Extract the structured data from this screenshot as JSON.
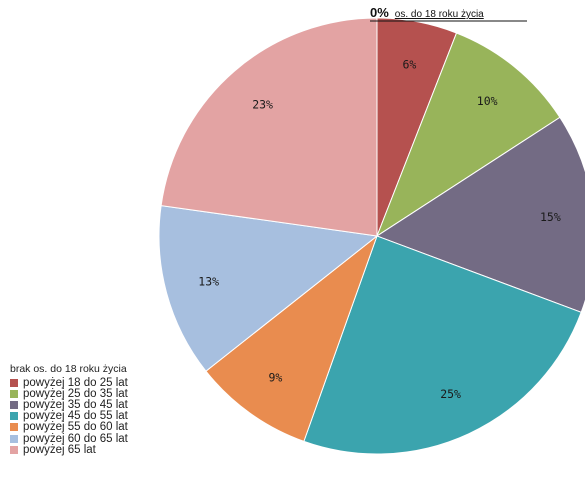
{
  "chart_data": {
    "type": "pie",
    "slices": [
      {
        "label": "brak os. do 18 roku życia",
        "value": 0,
        "value_label": "0%",
        "color": "#3a3a3a"
      },
      {
        "label": "powyżej 18 do 25 lat",
        "value": 6,
        "value_label": "6%",
        "color": "#b5514f"
      },
      {
        "label": "powyżej 25 do 35 lat",
        "value": 10,
        "value_label": "10%",
        "color": "#98b45a"
      },
      {
        "label": "powyżej 35 do 45 lat",
        "value": 15,
        "value_label": "15%",
        "color": "#736b84"
      },
      {
        "label": "powyżej 45 do 55 lat",
        "value": 25,
        "value_label": "25%",
        "color": "#3ba4ae"
      },
      {
        "label": "powyżej 55 do 60 lat",
        "value": 9,
        "value_label": "9%",
        "color": "#e98c4f"
      },
      {
        "label": "powyżej 60 do 65 lat",
        "value": 13,
        "value_label": "13%",
        "color": "#a7bfdf"
      },
      {
        "label": "powyżej 65 lat",
        "value": 23,
        "value_label": "23%",
        "color": "#e3a3a3"
      }
    ],
    "zero_annotation": {
      "value_label": "0%",
      "text": "os. do 18 roku życia"
    },
    "legend_position": "bottom-left"
  }
}
